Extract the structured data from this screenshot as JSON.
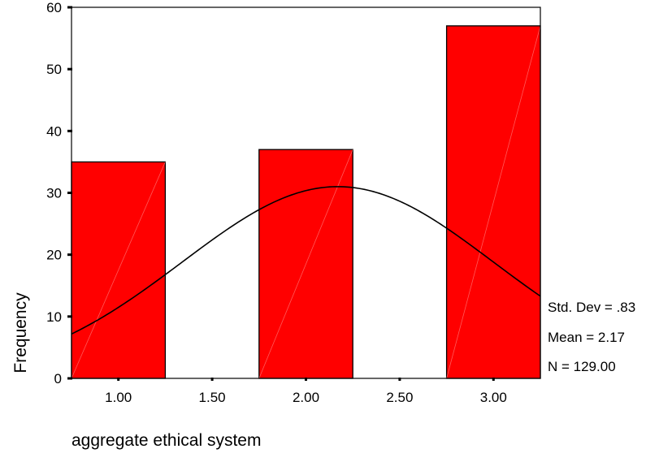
{
  "chart_data": {
    "type": "bar",
    "title": "",
    "xlabel": "aggregate ethical system",
    "ylabel": "Frequency",
    "categories": [
      "1.00",
      "2.00",
      "3.00"
    ],
    "bin_centers": [
      1.0,
      2.0,
      3.0
    ],
    "bin_width": 0.5,
    "values": [
      35,
      37,
      57
    ],
    "xlim": [
      0.75,
      3.25
    ],
    "ylim": [
      0,
      60
    ],
    "x_ticks": [
      "1.00",
      "1.50",
      "2.00",
      "2.50",
      "3.00"
    ],
    "x_tick_values": [
      1.0,
      1.5,
      2.0,
      2.5,
      3.0
    ],
    "y_ticks": [
      0,
      10,
      20,
      30,
      40,
      50,
      60
    ],
    "grid": false,
    "bar_color": "#ff0000",
    "normal_curve": {
      "mean": 2.17,
      "std_dev": 0.83,
      "n": 129
    },
    "stats": {
      "std_dev": "Std. Dev = .83",
      "mean": "Mean = 2.17",
      "n": "N = 129.00"
    },
    "legend_position": "right"
  }
}
